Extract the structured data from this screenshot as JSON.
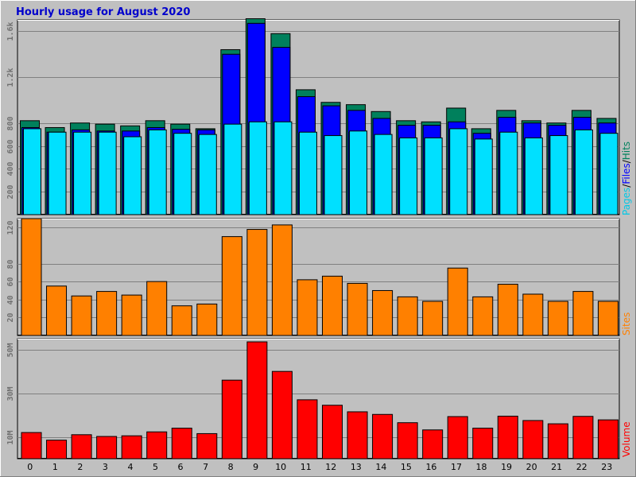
{
  "title": "Hourly usage for August 2020",
  "colors": {
    "hits": "#00805c",
    "files": "#0000ff",
    "pages": "#00e0ff",
    "sites": "#ff8000",
    "volume": "#ff0000",
    "background": "#c0c0c0",
    "title": "#0000cc"
  },
  "chart_data": [
    {
      "type": "bar",
      "categories": [
        "0",
        "1",
        "2",
        "3",
        "4",
        "5",
        "6",
        "7",
        "8",
        "9",
        "10",
        "11",
        "12",
        "13",
        "14",
        "15",
        "16",
        "17",
        "18",
        "19",
        "20",
        "21",
        "22",
        "23"
      ],
      "ylim": [
        0,
        1700
      ],
      "yticks": [
        200,
        400,
        600,
        800,
        1200,
        1600
      ],
      "ytick_labels": [
        "200",
        "400",
        "600",
        "800",
        "1.2k",
        "1.6k"
      ],
      "legend_label": {
        "pages": "Pages",
        "sep1": "/",
        "files": "Files",
        "sep2": "/",
        "hits": "Hits"
      },
      "series": [
        {
          "name": "Hits",
          "values": [
            820,
            760,
            800,
            790,
            775,
            820,
            790,
            750,
            1440,
            1710,
            1580,
            1090,
            980,
            960,
            900,
            820,
            810,
            930,
            750,
            910,
            820,
            800,
            910,
            840
          ]
        },
        {
          "name": "Files",
          "values": [
            760,
            720,
            740,
            730,
            730,
            760,
            745,
            740,
            1400,
            1670,
            1460,
            1030,
            950,
            910,
            840,
            780,
            780,
            810,
            710,
            850,
            800,
            780,
            850,
            800
          ]
        },
        {
          "name": "Pages",
          "values": [
            750,
            720,
            720,
            720,
            680,
            740,
            710,
            700,
            790,
            810,
            810,
            720,
            690,
            730,
            700,
            670,
            670,
            750,
            660,
            720,
            670,
            690,
            740,
            710
          ]
        }
      ]
    },
    {
      "type": "bar",
      "categories": [
        "0",
        "1",
        "2",
        "3",
        "4",
        "5",
        "6",
        "7",
        "8",
        "9",
        "10",
        "11",
        "12",
        "13",
        "14",
        "15",
        "16",
        "17",
        "18",
        "19",
        "20",
        "21",
        "22",
        "23"
      ],
      "ylim": [
        0,
        130
      ],
      "yticks": [
        20,
        40,
        60,
        80,
        120
      ],
      "ytick_labels": [
        "20",
        "40",
        "60",
        "80",
        "120"
      ],
      "legend_label": "Sites",
      "series": [
        {
          "name": "Sites",
          "values": [
            130,
            55,
            44,
            49,
            45,
            60,
            33,
            35,
            110,
            118,
            123,
            62,
            66,
            58,
            50,
            43,
            38,
            75,
            43,
            57,
            46,
            38,
            49,
            38
          ]
        }
      ]
    },
    {
      "type": "bar",
      "categories": [
        "0",
        "1",
        "2",
        "3",
        "4",
        "5",
        "6",
        "7",
        "8",
        "9",
        "10",
        "11",
        "12",
        "13",
        "14",
        "15",
        "16",
        "17",
        "18",
        "19",
        "20",
        "21",
        "22",
        "23"
      ],
      "ylim": [
        0,
        55
      ],
      "yticks": [
        10,
        30,
        50
      ],
      "ytick_labels": [
        "10M",
        "30M",
        "50M"
      ],
      "legend_label": "Volume",
      "series": [
        {
          "name": "Volume",
          "values": [
            12,
            8.5,
            11,
            10.2,
            10.5,
            12.3,
            14,
            11.5,
            36,
            54,
            40,
            27,
            24.5,
            21.5,
            20.3,
            16.5,
            13.2,
            19.3,
            14,
            19.5,
            17.5,
            16,
            19.4,
            17.8
          ]
        }
      ]
    }
  ]
}
